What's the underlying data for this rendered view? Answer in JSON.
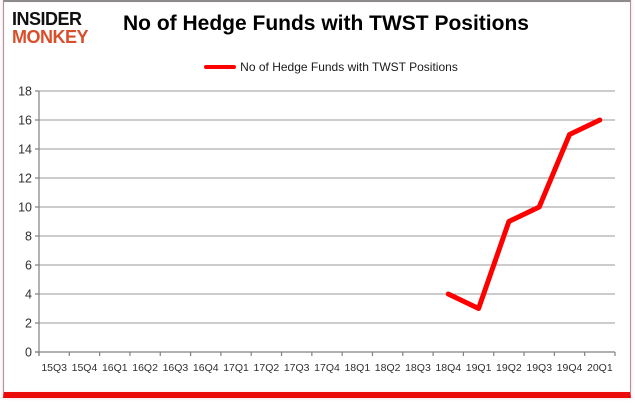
{
  "logo": {
    "line1": "INSIDER",
    "line2": "MONKEY"
  },
  "colors": {
    "line": "#fe0000",
    "logo_accent": "#d94f2c",
    "grid": "#9a9a9a",
    "axis": "#808080",
    "tick_label": "#303030",
    "bottom_bar": "#ec0b0b"
  },
  "chart_data": {
    "type": "line",
    "title": "No of Hedge Funds with TWST Positions",
    "xlabel": "",
    "ylabel": "",
    "ylim": [
      0,
      18
    ],
    "yticks": [
      0,
      2,
      4,
      6,
      8,
      10,
      12,
      14,
      16,
      18
    ],
    "grid": true,
    "legend_position": "top-center",
    "categories": [
      "15Q3",
      "15Q4",
      "16Q1",
      "16Q2",
      "16Q3",
      "16Q4",
      "17Q1",
      "17Q2",
      "17Q3",
      "17Q4",
      "18Q1",
      "18Q2",
      "18Q3",
      "18Q4",
      "19Q1",
      "19Q2",
      "19Q3",
      "19Q4",
      "20Q1"
    ],
    "series": [
      {
        "name": "No of Hedge Funds with TWST Positions",
        "color": "#fe0000",
        "values": [
          null,
          null,
          null,
          null,
          null,
          null,
          null,
          null,
          null,
          null,
          null,
          null,
          null,
          4,
          3,
          9,
          10,
          15,
          16
        ]
      }
    ]
  }
}
